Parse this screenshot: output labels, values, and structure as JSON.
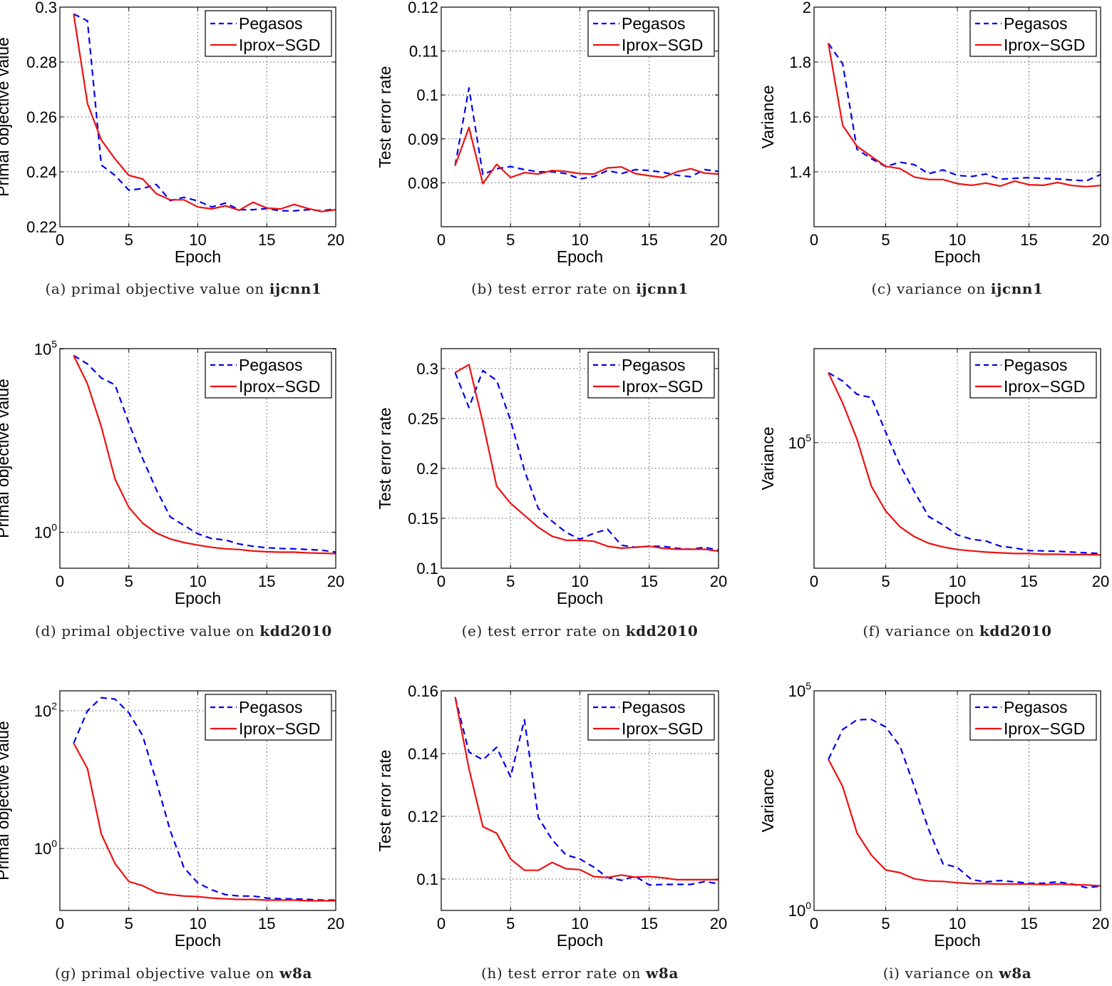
{
  "chart_data": [
    {
      "type": "line",
      "xlabel": "Epoch",
      "ylabel": "Primal objective value",
      "yscale": "linear",
      "xlim": [
        0,
        20
      ],
      "ylim": [
        0.22,
        0.3
      ],
      "xticks": [
        0,
        5,
        10,
        15,
        20
      ],
      "xtick_labels": [
        "0",
        "5",
        "10",
        "15",
        "20"
      ],
      "yticks": [
        0.22,
        0.24,
        0.26,
        0.28,
        0.3
      ],
      "ytick_labels": [
        "0.22",
        "0.24",
        "0.26",
        "0.28",
        "0.3"
      ],
      "grid": true,
      "legend": "top-right",
      "caption": {
        "label": "(a)",
        "text": "primal objective value on",
        "dataset": "ijcnn1"
      },
      "x": [
        1,
        2,
        3,
        4,
        5,
        6,
        7,
        8,
        9,
        10,
        11,
        12,
        13,
        14,
        15,
        16,
        17,
        18,
        19,
        20
      ],
      "series": [
        {
          "name": "Pegasos",
          "color": "#0000ee",
          "style": "dashed",
          "values": [
            0.2975,
            0.295,
            0.2425,
            0.2387,
            0.2333,
            0.2339,
            0.2354,
            0.2295,
            0.2307,
            0.2294,
            0.2272,
            0.2286,
            0.2262,
            0.2262,
            0.2266,
            0.2258,
            0.2258,
            0.2262,
            0.2258,
            0.2265
          ]
        },
        {
          "name": "Iprox−SGD",
          "color": "#ee1111",
          "style": "solid",
          "values": [
            0.2975,
            0.2649,
            0.2516,
            0.2447,
            0.2387,
            0.2374,
            0.232,
            0.2298,
            0.2298,
            0.2272,
            0.2265,
            0.2276,
            0.226,
            0.2289,
            0.2268,
            0.2265,
            0.2281,
            0.2266,
            0.2255,
            0.2262
          ]
        }
      ]
    },
    {
      "type": "line",
      "xlabel": "Epoch",
      "ylabel": "Test error rate",
      "yscale": "linear",
      "xlim": [
        0,
        20
      ],
      "ylim": [
        0.07,
        0.12
      ],
      "xticks": [
        0,
        5,
        10,
        15,
        20
      ],
      "xtick_labels": [
        "0",
        "5",
        "10",
        "15",
        "20"
      ],
      "yticks": [
        0.08,
        0.09,
        0.1,
        0.11,
        0.12
      ],
      "ytick_labels": [
        "0.08",
        "0.09",
        "0.1",
        "0.11",
        "0.12"
      ],
      "grid": true,
      "legend": "top-right",
      "caption": {
        "label": "(b)",
        "text": "test error rate on",
        "dataset": "ijcnn1"
      },
      "x": [
        1,
        2,
        3,
        4,
        5,
        6,
        7,
        8,
        9,
        10,
        11,
        12,
        13,
        14,
        15,
        16,
        17,
        18,
        19,
        20
      ],
      "series": [
        {
          "name": "Pegasos",
          "color": "#0000ee",
          "style": "dashed",
          "values": [
            0.0839,
            0.1016,
            0.0819,
            0.0832,
            0.0837,
            0.083,
            0.0825,
            0.0825,
            0.0821,
            0.0809,
            0.0814,
            0.0828,
            0.0821,
            0.083,
            0.0828,
            0.0824,
            0.0817,
            0.0814,
            0.083,
            0.0826
          ]
        },
        {
          "name": "Iprox−SGD",
          "color": "#ee1111",
          "style": "solid",
          "values": [
            0.0839,
            0.0926,
            0.0798,
            0.0842,
            0.0812,
            0.0823,
            0.082,
            0.0828,
            0.0826,
            0.0821,
            0.082,
            0.0834,
            0.0836,
            0.0821,
            0.0816,
            0.0812,
            0.0825,
            0.0832,
            0.0822,
            0.082
          ]
        }
      ]
    },
    {
      "type": "line",
      "xlabel": "Epoch",
      "ylabel": "Variance",
      "yscale": "linear",
      "xlim": [
        0,
        20
      ],
      "ylim": [
        1.2,
        2
      ],
      "xticks": [
        0,
        5,
        10,
        15,
        20
      ],
      "xtick_labels": [
        "0",
        "5",
        "10",
        "15",
        "20"
      ],
      "yticks": [
        1.4,
        1.6,
        1.8,
        2
      ],
      "ytick_labels": [
        "1.4",
        "1.6",
        "1.8",
        "2"
      ],
      "grid": true,
      "legend": "top-right",
      "caption": {
        "label": "(c)",
        "text": "variance on",
        "dataset": "ijcnn1"
      },
      "x": [
        1,
        2,
        3,
        4,
        5,
        6,
        7,
        8,
        9,
        10,
        11,
        12,
        13,
        14,
        15,
        16,
        17,
        18,
        19,
        20
      ],
      "series": [
        {
          "name": "Pegasos",
          "color": "#0000ee",
          "style": "dashed",
          "values": [
            1.868,
            1.793,
            1.482,
            1.448,
            1.419,
            1.435,
            1.426,
            1.393,
            1.407,
            1.387,
            1.383,
            1.392,
            1.373,
            1.376,
            1.379,
            1.376,
            1.374,
            1.37,
            1.367,
            1.39
          ]
        },
        {
          "name": "Iprox−SGD",
          "color": "#ee1111",
          "style": "solid",
          "values": [
            1.868,
            1.569,
            1.493,
            1.456,
            1.42,
            1.412,
            1.381,
            1.372,
            1.372,
            1.357,
            1.351,
            1.359,
            1.348,
            1.366,
            1.353,
            1.351,
            1.361,
            1.35,
            1.346,
            1.35
          ]
        }
      ]
    },
    {
      "type": "line",
      "xlabel": "Epoch",
      "ylabel": "Primal objective value",
      "yscale": "log",
      "xlim": [
        0,
        20
      ],
      "ylim": [
        0.105,
        102000
      ],
      "xticks": [
        0,
        5,
        10,
        15,
        20
      ],
      "xtick_labels": [
        "0",
        "5",
        "10",
        "15",
        "20"
      ],
      "yticks": [
        1,
        100000
      ],
      "ytick_labels": [
        "10^0",
        "10^5"
      ],
      "grid": true,
      "legend": "top-right",
      "caption": {
        "label": "(d)",
        "text": "primal objective value on",
        "dataset": "kdd2010"
      },
      "x": [
        1,
        2,
        3,
        4,
        5,
        6,
        7,
        8,
        9,
        10,
        11,
        12,
        13,
        14,
        15,
        16,
        17,
        18,
        19,
        20
      ],
      "series": [
        {
          "name": "Pegasos",
          "color": "#0000ee",
          "style": "dashed",
          "values": [
            66000,
            38900,
            16200,
            10500,
            955,
            102,
            14.5,
            2.63,
            1.55,
            0.912,
            0.676,
            0.617,
            0.479,
            0.417,
            0.38,
            0.363,
            0.355,
            0.339,
            0.324,
            0.288
          ]
        },
        {
          "name": "Iprox−SGD",
          "color": "#ee1111",
          "style": "solid",
          "values": [
            66000,
            11200,
            759,
            28.2,
            4.79,
            1.78,
            0.955,
            0.661,
            0.525,
            0.447,
            0.389,
            0.355,
            0.339,
            0.309,
            0.295,
            0.288,
            0.288,
            0.275,
            0.269,
            0.263
          ]
        }
      ]
    },
    {
      "type": "line",
      "xlabel": "Epoch",
      "ylabel": "Test error rate",
      "yscale": "linear",
      "xlim": [
        0,
        20
      ],
      "ylim": [
        0.1,
        0.32
      ],
      "xticks": [
        0,
        5,
        10,
        15,
        20
      ],
      "xtick_labels": [
        "0",
        "5",
        "10",
        "15",
        "20"
      ],
      "yticks": [
        0.1,
        0.15,
        0.2,
        0.25,
        0.3
      ],
      "ytick_labels": [
        "0.1",
        "0.15",
        "0.2",
        "0.25",
        "0.3"
      ],
      "grid": true,
      "legend": "top-right",
      "caption": {
        "label": "(e)",
        "text": "test error rate on",
        "dataset": "kdd2010"
      },
      "x": [
        1,
        2,
        3,
        4,
        5,
        6,
        7,
        8,
        9,
        10,
        11,
        12,
        13,
        14,
        15,
        16,
        17,
        18,
        19,
        20
      ],
      "series": [
        {
          "name": "Pegasos",
          "color": "#0000ee",
          "style": "dashed",
          "values": [
            0.296,
            0.261,
            0.298,
            0.288,
            0.248,
            0.198,
            0.16,
            0.147,
            0.136,
            0.129,
            0.135,
            0.139,
            0.123,
            0.121,
            0.122,
            0.122,
            0.12,
            0.119,
            0.121,
            0.118
          ]
        },
        {
          "name": "Iprox−SGD",
          "color": "#ee1111",
          "style": "solid",
          "values": [
            0.296,
            0.304,
            0.246,
            0.182,
            0.165,
            0.153,
            0.141,
            0.132,
            0.128,
            0.128,
            0.127,
            0.122,
            0.12,
            0.121,
            0.122,
            0.12,
            0.119,
            0.119,
            0.119,
            0.117
          ]
        }
      ]
    },
    {
      "type": "line",
      "xlabel": "Epoch",
      "ylabel": "Variance",
      "yscale": "log",
      "xlim": [
        0,
        20
      ],
      "ylim": [
        37,
        37000000
      ],
      "xticks": [
        0,
        5,
        10,
        15,
        20
      ],
      "xtick_labels": [
        "0",
        "5",
        "10",
        "15",
        "20"
      ],
      "yticks": [
        100000
      ],
      "ytick_labels": [
        "10^5"
      ],
      "grid": true,
      "legend": "top-right",
      "caption": {
        "label": "(f)",
        "text": "variance on",
        "dataset": "kdd2010"
      },
      "x": [
        1,
        2,
        3,
        4,
        5,
        6,
        7,
        8,
        9,
        10,
        11,
        12,
        13,
        14,
        15,
        16,
        17,
        18,
        19,
        20
      ],
      "series": [
        {
          "name": "Pegasos",
          "color": "#0000ee",
          "style": "dashed",
          "values": [
            8130000,
            4790000,
            2090000,
            1700000,
            195000,
            24000,
            4570,
            955,
            562,
            302,
            229,
            204,
            148,
            132,
            112,
            110,
            107,
            102,
            97.7,
            93.3
          ]
        },
        {
          "name": "Iprox−SGD",
          "color": "#ee1111",
          "style": "solid",
          "values": [
            8130000,
            1200000,
            123000,
            6460,
            1350,
            501,
            269,
            178,
            141,
            120,
            110,
            102,
            97.7,
            93.3,
            93.3,
            89.1,
            89.1,
            87.1,
            87.1,
            85.1
          ]
        }
      ]
    },
    {
      "type": "line",
      "xlabel": "Epoch",
      "ylabel": "Primal objective value",
      "yscale": "log",
      "xlim": [
        0,
        20
      ],
      "ylim": [
        0.126,
        195
      ],
      "xticks": [
        0,
        5,
        10,
        15,
        20
      ],
      "xtick_labels": [
        "0",
        "5",
        "10",
        "15",
        "20"
      ],
      "yticks": [
        1,
        100
      ],
      "ytick_labels": [
        "10^0",
        "10^2"
      ],
      "grid": true,
      "legend": "top-right",
      "caption": {
        "label": "(g)",
        "text": "primal objective value on",
        "dataset": "w8a"
      },
      "x": [
        1,
        2,
        3,
        4,
        5,
        6,
        7,
        8,
        9,
        10,
        11,
        12,
        13,
        14,
        15,
        16,
        17,
        18,
        19,
        20
      ],
      "series": [
        {
          "name": "Pegasos",
          "color": "#0000ee",
          "style": "dashed",
          "values": [
            33.9,
            100,
            155,
            148,
            93.3,
            43.7,
            9.33,
            1.82,
            0.525,
            0.316,
            0.251,
            0.214,
            0.204,
            0.204,
            0.191,
            0.186,
            0.186,
            0.182,
            0.178,
            0.178
          ]
        },
        {
          "name": "Iprox−SGD",
          "color": "#ee1111",
          "style": "solid",
          "values": [
            33.9,
            14.5,
            1.62,
            0.603,
            0.331,
            0.288,
            0.229,
            0.214,
            0.204,
            0.2,
            0.191,
            0.186,
            0.182,
            0.182,
            0.178,
            0.178,
            0.178,
            0.174,
            0.174,
            0.174
          ]
        }
      ]
    },
    {
      "type": "line",
      "xlabel": "Epoch",
      "ylabel": "Test error rate",
      "yscale": "linear",
      "xlim": [
        0,
        20
      ],
      "ylim": [
        0.09,
        0.16
      ],
      "xticks": [
        0,
        5,
        10,
        15,
        20
      ],
      "xtick_labels": [
        "0",
        "5",
        "10",
        "15",
        "20"
      ],
      "yticks": [
        0.1,
        0.12,
        0.14,
        0.16
      ],
      "ytick_labels": [
        "0.1",
        "0.12",
        "0.14",
        "0.16"
      ],
      "grid": true,
      "legend": "top-right",
      "caption": {
        "label": "(h)",
        "text": "test error rate on",
        "dataset": "w8a"
      },
      "x": [
        1,
        2,
        3,
        4,
        5,
        6,
        7,
        8,
        9,
        10,
        11,
        12,
        13,
        14,
        15,
        16,
        17,
        18,
        19,
        20
      ],
      "series": [
        {
          "name": "Pegasos",
          "color": "#0000ee",
          "style": "dashed",
          "values": [
            0.158,
            0.1405,
            0.138,
            0.142,
            0.1326,
            0.1508,
            0.1197,
            0.1125,
            0.1077,
            0.1064,
            0.1038,
            0.1005,
            0.0996,
            0.1009,
            0.0981,
            0.0983,
            0.0983,
            0.0983,
            0.0992,
            0.0985
          ]
        },
        {
          "name": "Iprox−SGD",
          "color": "#ee1111",
          "style": "solid",
          "values": [
            0.158,
            0.1352,
            0.1167,
            0.1146,
            0.1064,
            0.1028,
            0.1028,
            0.1053,
            0.1033,
            0.103,
            0.1008,
            0.1005,
            0.1013,
            0.1006,
            0.1008,
            0.1004,
            0.0998,
            0.0998,
            0.0998,
            0.0998
          ]
        }
      ]
    },
    {
      "type": "line",
      "xlabel": "Epoch",
      "ylabel": "Variance",
      "yscale": "log",
      "xlim": [
        0,
        20
      ],
      "ylim": [
        1,
        100000
      ],
      "xticks": [
        0,
        5,
        10,
        15,
        20
      ],
      "xtick_labels": [
        "0",
        "5",
        "10",
        "15",
        "20"
      ],
      "yticks": [
        1,
        100000
      ],
      "ytick_labels": [
        "10^0",
        "10^5"
      ],
      "grid": true,
      "legend": "top-right",
      "caption": {
        "label": "(i)",
        "text": "variance on",
        "dataset": "w8a"
      },
      "x": [
        1,
        2,
        3,
        4,
        5,
        6,
        7,
        8,
        9,
        10,
        11,
        12,
        13,
        14,
        15,
        16,
        17,
        18,
        19,
        20
      ],
      "series": [
        {
          "name": "Pegasos",
          "color": "#0000ee",
          "style": "dashed",
          "values": [
            2750,
            13200,
            21900,
            22400,
            15100,
            5500,
            661,
            69.2,
            11.5,
            9.55,
            5.01,
            4.47,
            4.79,
            4.47,
            4.17,
            4.17,
            4.47,
            3.98,
            3.31,
            3.55
          ]
        },
        {
          "name": "Iprox−SGD",
          "color": "#ee1111",
          "style": "solid",
          "values": [
            2750,
            661,
            57.5,
            18.2,
            8.32,
            7.24,
            5.25,
            4.68,
            4.57,
            4.27,
            4.07,
            4.07,
            3.98,
            3.98,
            3.98,
            3.89,
            3.98,
            3.89,
            3.8,
            3.63
          ]
        }
      ]
    }
  ]
}
